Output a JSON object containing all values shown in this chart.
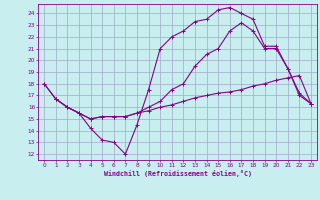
{
  "bg_color": "#c8eef0",
  "grid_color": "#a0a8c8",
  "line_color": "#880088",
  "title": "Windchill (Refroidissement éolien,°C)",
  "xlim": [
    -0.5,
    23.5
  ],
  "ylim": [
    11.5,
    24.8
  ],
  "xticks": [
    0,
    1,
    2,
    3,
    4,
    5,
    6,
    7,
    8,
    9,
    10,
    11,
    12,
    13,
    14,
    15,
    16,
    17,
    18,
    19,
    20,
    21,
    22,
    23
  ],
  "yticks": [
    12,
    13,
    14,
    15,
    16,
    17,
    18,
    19,
    20,
    21,
    22,
    23,
    24
  ],
  "line1_x": [
    0,
    1,
    2,
    3,
    4,
    5,
    6,
    7,
    8,
    9,
    10,
    11,
    12,
    13,
    14,
    15,
    16,
    17,
    18,
    19,
    20,
    21,
    22,
    23
  ],
  "line1_y": [
    18.0,
    16.7,
    16.0,
    15.5,
    15.0,
    15.2,
    15.2,
    15.2,
    15.5,
    15.7,
    16.0,
    16.2,
    16.5,
    16.8,
    17.0,
    17.2,
    17.3,
    17.5,
    17.8,
    18.0,
    18.3,
    18.5,
    18.7,
    16.3
  ],
  "line2_x": [
    1,
    2,
    3,
    4,
    5,
    6,
    7,
    8,
    9,
    10,
    11,
    12,
    13,
    14,
    15,
    16,
    17,
    18,
    19,
    20,
    21,
    22,
    23
  ],
  "line2_y": [
    16.7,
    16.0,
    15.5,
    14.2,
    13.2,
    13.0,
    12.0,
    14.5,
    17.5,
    21.0,
    22.0,
    22.5,
    23.3,
    23.5,
    24.3,
    24.5,
    24.0,
    23.5,
    21.2,
    21.2,
    19.3,
    17.2,
    16.3
  ],
  "line3_x": [
    0,
    1,
    2,
    3,
    4,
    5,
    6,
    7,
    8,
    9,
    10,
    11,
    12,
    13,
    14,
    15,
    16,
    17,
    18,
    19,
    20,
    21,
    22,
    23
  ],
  "line3_y": [
    18.0,
    16.7,
    16.0,
    15.5,
    15.0,
    15.2,
    15.2,
    15.2,
    15.5,
    16.0,
    16.5,
    17.5,
    18.0,
    19.5,
    20.5,
    21.0,
    22.5,
    23.2,
    22.5,
    21.0,
    21.0,
    19.3,
    17.0,
    16.3
  ]
}
